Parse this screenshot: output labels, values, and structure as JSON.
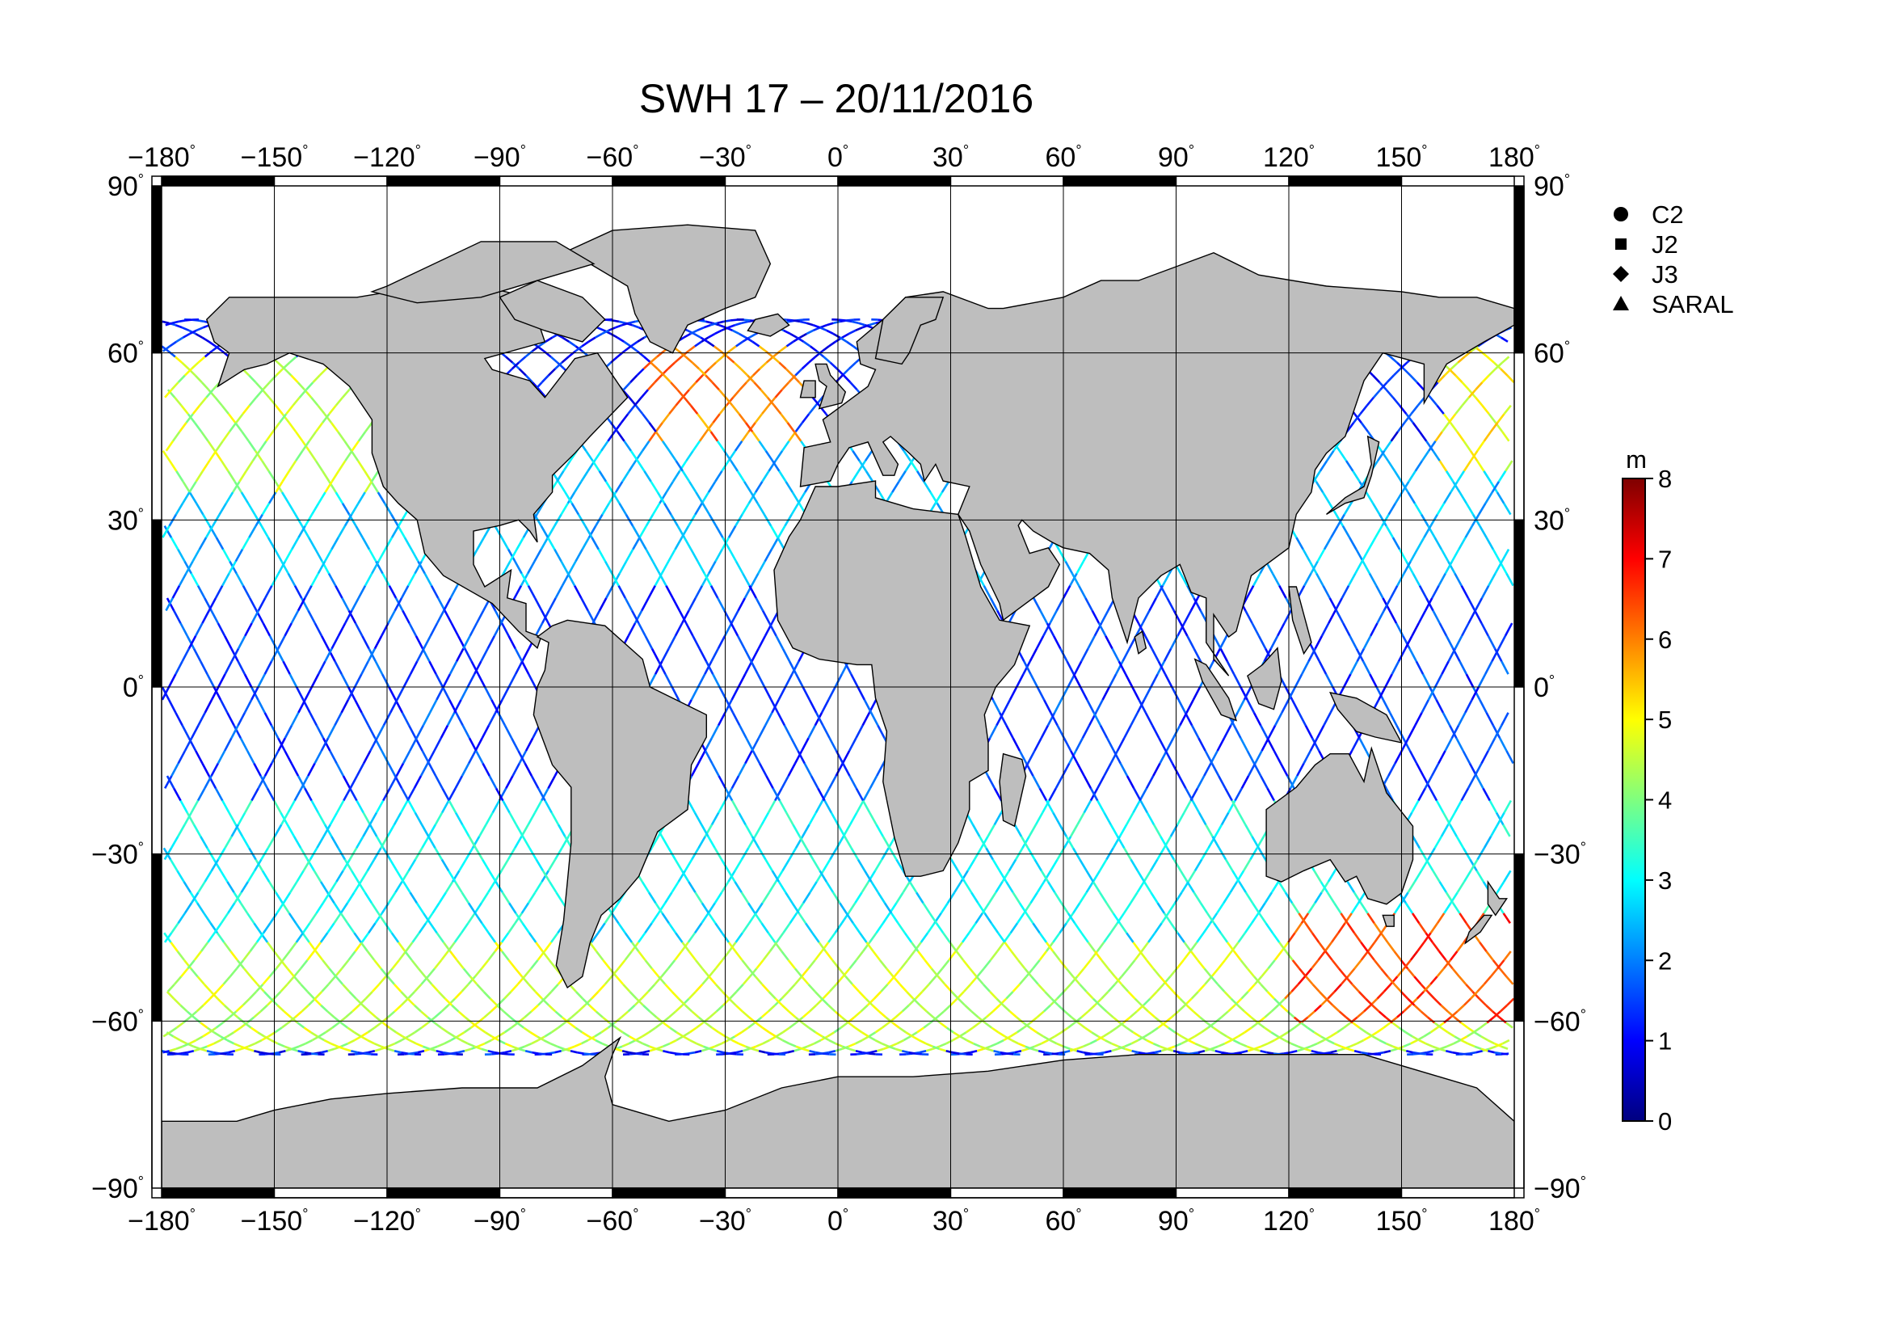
{
  "title": "SWH 17 – 20/11/2016",
  "axes": {
    "lon_ticks": [
      -180,
      -150,
      -120,
      -90,
      -60,
      -30,
      0,
      30,
      60,
      90,
      120,
      150,
      180
    ],
    "lat_ticks": [
      90,
      60,
      30,
      0,
      -30,
      -60,
      -90
    ],
    "degree_symbol": "°",
    "lon_range": [
      -180,
      180
    ],
    "lat_range": [
      -90,
      90
    ],
    "grid": true
  },
  "legend": {
    "placement": "top-right",
    "items": [
      {
        "label": "C2",
        "symbol": "circle"
      },
      {
        "label": "J2",
        "symbol": "square"
      },
      {
        "label": "J3",
        "symbol": "diamond"
      },
      {
        "label": "SARAL",
        "symbol": "triangle"
      }
    ]
  },
  "colorbar": {
    "unit": "m",
    "min": 0,
    "max": 8,
    "ticks": [
      0,
      1,
      2,
      3,
      4,
      5,
      6,
      7,
      8
    ],
    "colors": [
      "#00007f",
      "#0000ff",
      "#007fff",
      "#00ffff",
      "#7fff7f",
      "#ffff00",
      "#ff7f00",
      "#ff0000",
      "#7f0000"
    ]
  },
  "colors": {
    "land": "#bebebe",
    "coast": "#000000",
    "ocean": "#ffffff",
    "frame": "#000000"
  },
  "chart_data": {
    "type": "scatter",
    "title": "SWH 17 – 20/11/2016",
    "xlabel": "",
    "ylabel": "",
    "xlim": [
      -180,
      180
    ],
    "ylim": [
      -90,
      90
    ],
    "variable_unit": "m",
    "color_scale": [
      0,
      8
    ],
    "series": [
      {
        "name": "C2",
        "marker": "circle"
      },
      {
        "name": "J2",
        "marker": "square"
      },
      {
        "name": "J3",
        "marker": "diamond"
      },
      {
        "name": "SARAL",
        "marker": "triangle"
      }
    ],
    "swh_regions": [
      {
        "lon": [
          -180,
          180
        ],
        "lat": [
          -20,
          20
        ],
        "swh_m": 1.5
      },
      {
        "lon": [
          -180,
          180
        ],
        "lat": [
          20,
          45
        ],
        "swh_m": 2.5
      },
      {
        "lon": [
          -180,
          180
        ],
        "lat": [
          -45,
          -20
        ],
        "swh_m": 3.0
      },
      {
        "lon": [
          -180,
          180
        ],
        "lat": [
          -65,
          -45
        ],
        "swh_m": 4.5
      },
      {
        "lon": [
          120,
          180
        ],
        "lat": [
          -60,
          -40
        ],
        "swh_m": 6.5
      },
      {
        "lon": [
          -180,
          -120
        ],
        "lat": [
          35,
          60
        ],
        "swh_m": 4.5
      },
      {
        "lon": [
          -50,
          -10
        ],
        "lat": [
          45,
          62
        ],
        "swh_m": 6.0
      },
      {
        "lon": [
          160,
          180
        ],
        "lat": [
          40,
          62
        ],
        "swh_m": 5.0
      }
    ]
  }
}
